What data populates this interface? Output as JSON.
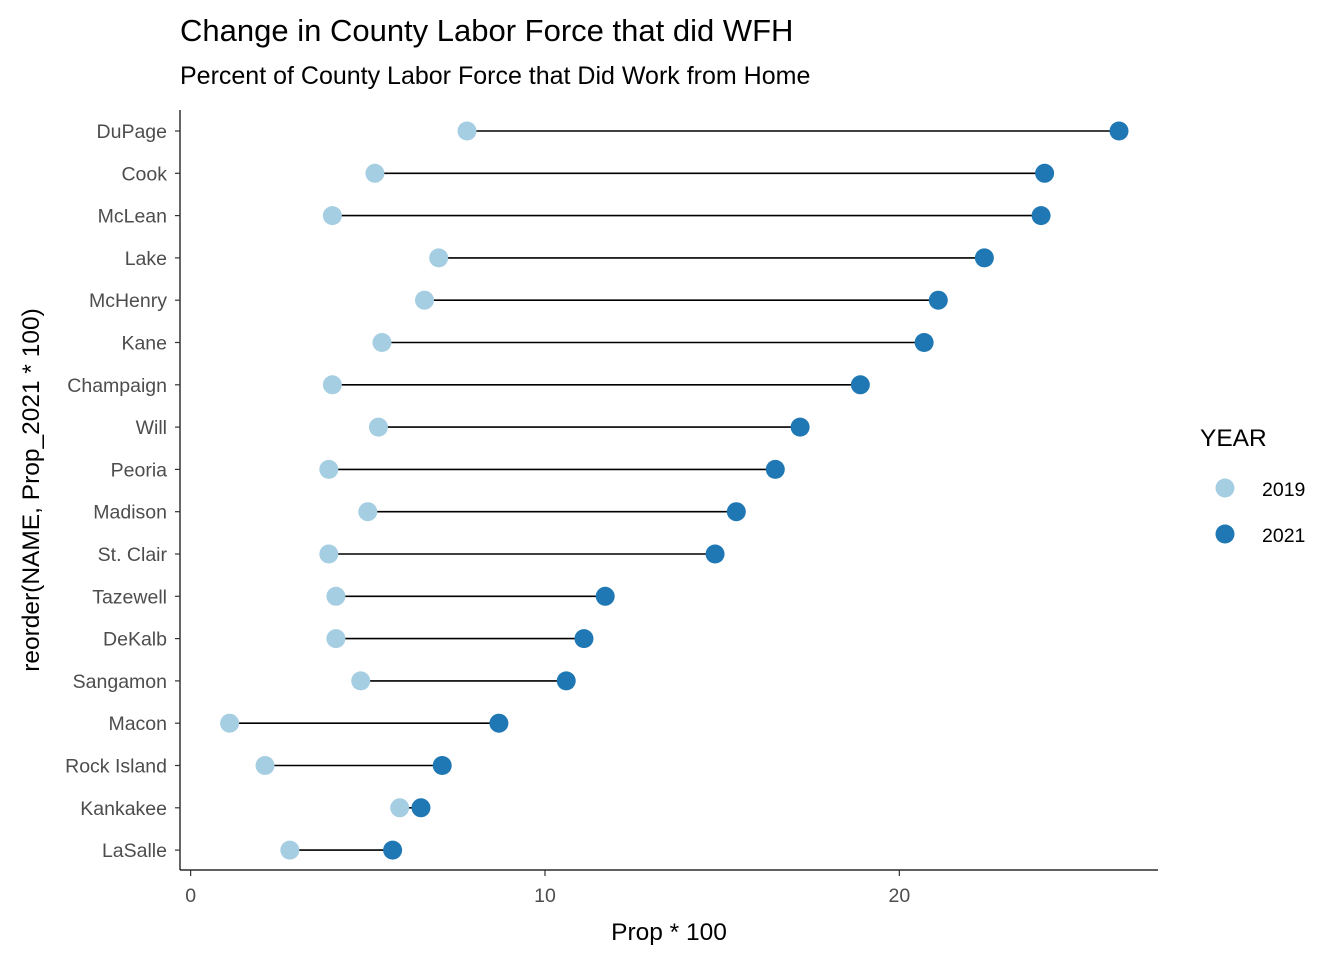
{
  "chart_data": {
    "type": "dumbbell",
    "title": "Change in County Labor Force that did WFH",
    "subtitle": "Percent of County Labor Force that Did Work from Home",
    "xlabel": "Prop * 100",
    "ylabel": "reorder(NAME, Prop_2021 * 100)",
    "xlim": [
      -0.3,
      27.3
    ],
    "xticks": [
      0,
      10,
      20
    ],
    "grid": false,
    "legend": {
      "title": "YEAR",
      "position": "right",
      "entries": [
        {
          "label": "2019",
          "color": "#a6cee3"
        },
        {
          "label": "2021",
          "color": "#1f78b4"
        }
      ]
    },
    "categories": [
      "DuPage",
      "Cook",
      "McLean",
      "Lake",
      "McHenry",
      "Kane",
      "Champaign",
      "Will",
      "Peoria",
      "Madison",
      "St. Clair",
      "Tazewell",
      "DeKalb",
      "Sangamon",
      "Macon",
      "Rock Island",
      "Kankakee",
      "LaSalle"
    ],
    "series": [
      {
        "name": "2019",
        "color": "#a6cee3",
        "values": [
          7.8,
          5.2,
          4.0,
          7.0,
          6.6,
          5.4,
          4.0,
          5.3,
          3.9,
          5.0,
          3.9,
          4.1,
          4.1,
          4.8,
          1.1,
          2.1,
          5.9,
          2.8
        ]
      },
      {
        "name": "2021",
        "color": "#1f78b4",
        "values": [
          26.2,
          24.1,
          24.0,
          22.4,
          21.1,
          20.7,
          18.9,
          17.2,
          16.5,
          15.4,
          14.8,
          11.7,
          11.1,
          10.6,
          8.7,
          7.1,
          6.5,
          5.7
        ]
      }
    ]
  }
}
